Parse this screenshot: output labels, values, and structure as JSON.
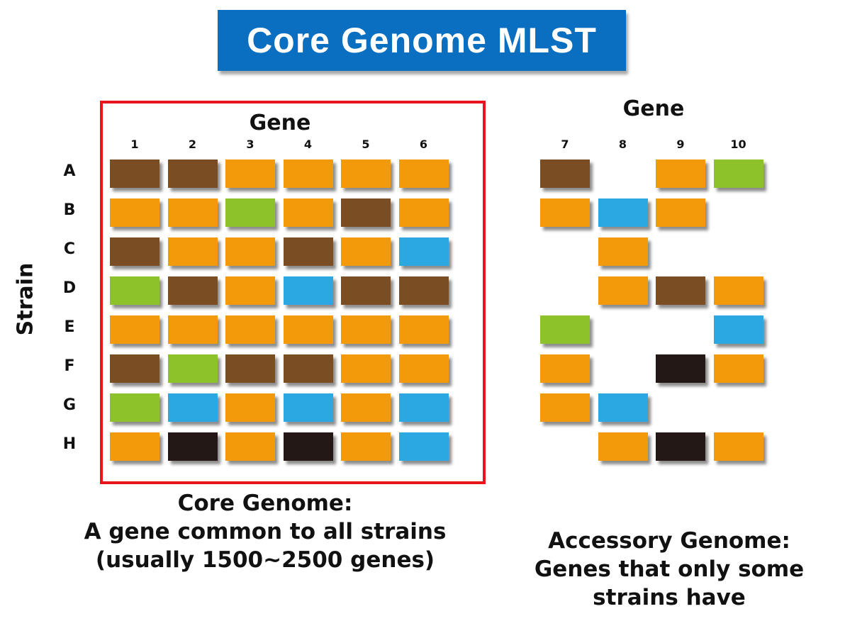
{
  "title": "Core Genome MLST",
  "colors": {
    "brown": "#7b4d22",
    "orange": "#f39a0b",
    "green": "#8dc22a",
    "blue": "#2ba7e1",
    "black": "#231815",
    "frame": "#e8151b",
    "title_bg": "#0a6fc0"
  },
  "y_axis_label": "Strain",
  "strains": [
    "A",
    "B",
    "C",
    "D",
    "E",
    "F",
    "G",
    "H"
  ],
  "core": {
    "gene_label": "Gene",
    "genes": [
      "1",
      "2",
      "3",
      "4",
      "5",
      "6"
    ],
    "alleles": [
      [
        "brown",
        "brown",
        "orange",
        "orange",
        "orange",
        "orange"
      ],
      [
        "orange",
        "orange",
        "green",
        "orange",
        "brown",
        "orange"
      ],
      [
        "brown",
        "orange",
        "orange",
        "brown",
        "orange",
        "blue"
      ],
      [
        "green",
        "brown",
        "orange",
        "blue",
        "brown",
        "brown"
      ],
      [
        "orange",
        "orange",
        "orange",
        "orange",
        "orange",
        "orange"
      ],
      [
        "brown",
        "green",
        "brown",
        "brown",
        "orange",
        "orange"
      ],
      [
        "green",
        "blue",
        "orange",
        "blue",
        "orange",
        "blue"
      ],
      [
        "orange",
        "black",
        "orange",
        "black",
        "orange",
        "blue"
      ]
    ],
    "caption": [
      "Core Genome:",
      "A gene common to all strains",
      "(usually 1500~2500 genes)"
    ]
  },
  "accessory": {
    "gene_label": "Gene",
    "genes": [
      "7",
      "8",
      "9",
      "10"
    ],
    "alleles": [
      [
        "brown",
        null,
        "orange",
        "green"
      ],
      [
        "orange",
        "blue",
        "orange",
        null
      ],
      [
        null,
        "orange",
        null,
        null
      ],
      [
        null,
        "orange",
        "brown",
        "orange"
      ],
      [
        "green",
        null,
        null,
        "blue"
      ],
      [
        "orange",
        null,
        "black",
        "orange"
      ],
      [
        "orange",
        "blue",
        null,
        null
      ],
      [
        null,
        "orange",
        "black",
        "orange"
      ]
    ],
    "caption": [
      "Accessory Genome:",
      "Genes that only some",
      "strains have"
    ]
  }
}
